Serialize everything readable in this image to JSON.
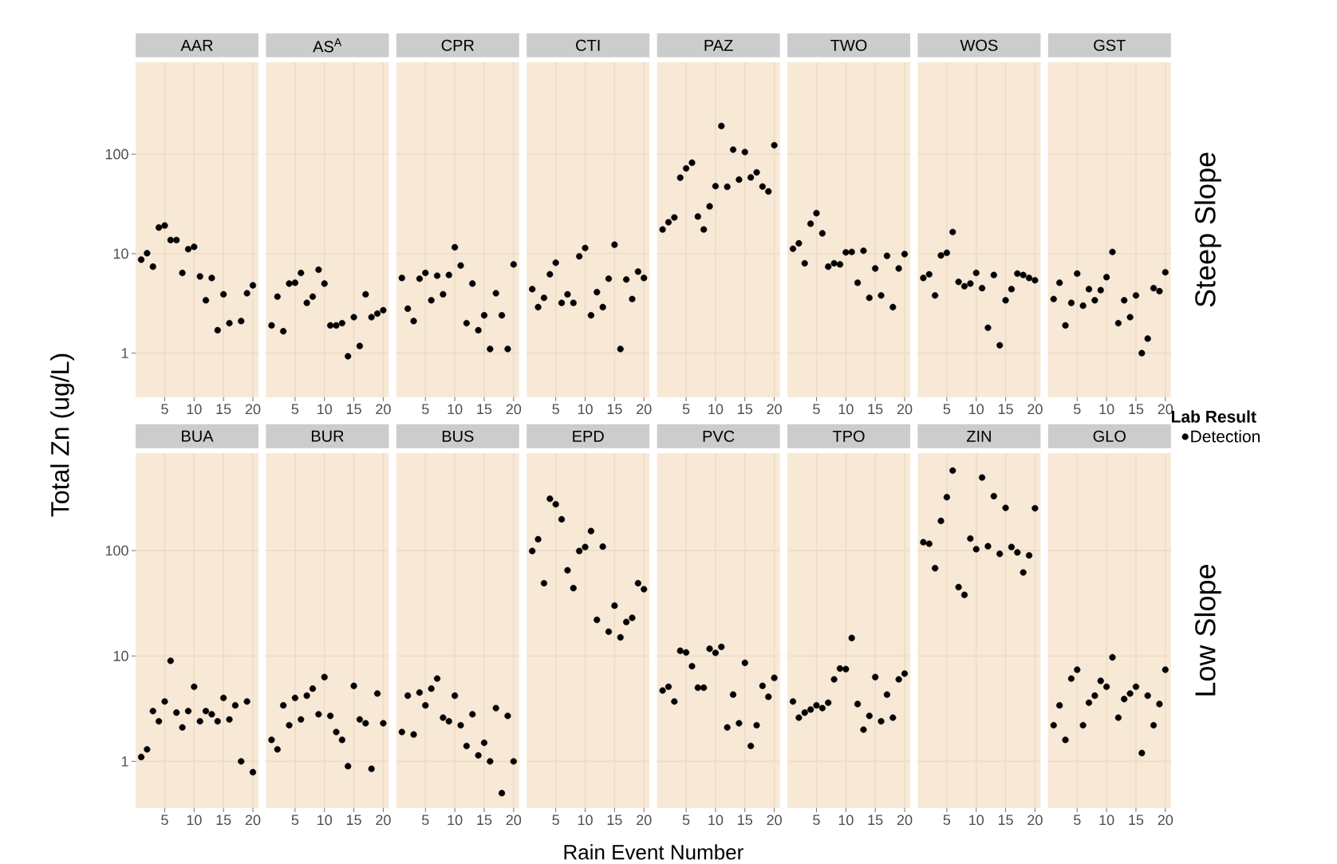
{
  "chart_data": [
    {
      "type": "scatter",
      "title": "AAR",
      "ylabel": "Total Zn (ug/L)",
      "x": [
        1,
        2,
        3,
        4,
        5,
        6,
        7,
        8,
        9,
        10,
        11,
        12,
        13,
        14,
        15,
        16,
        18,
        19,
        20
      ],
      "values": [
        8.7,
        10.1,
        7.4,
        18.3,
        19.2,
        13.7,
        13.7,
        6.4,
        11.1,
        11.7,
        5.9,
        3.4,
        5.7,
        1.7,
        3.9,
        2.0,
        2.1,
        4.0,
        4.8
      ],
      "color": "#000000",
      "xlim": [
        0.05,
        20.95
      ],
      "xticks": [
        5,
        10,
        15,
        20
      ],
      "ylim": [
        0.36,
        840
      ],
      "yticks": [
        1,
        10,
        100
      ],
      "log": "y",
      "grid": true,
      "marker": "circle"
    },
    {
      "type": "scatter",
      "title": "AS$^{A}$",
      "x": [
        1,
        2,
        3,
        4,
        5,
        6,
        7,
        8,
        9,
        10,
        11,
        12,
        13,
        14,
        15,
        16,
        17,
        18,
        19,
        20
      ],
      "values": [
        1.9,
        3.7,
        1.66,
        5.0,
        5.1,
        6.4,
        3.2,
        3.7,
        6.9,
        5.0,
        1.9,
        1.9,
        2.0,
        0.93,
        2.3,
        1.18,
        3.9,
        2.3,
        2.5,
        2.7
      ],
      "color": "#000000",
      "xlim": [
        0.05,
        20.95
      ],
      "xticks": [
        5,
        10,
        15,
        20
      ],
      "ylim": [
        0.36,
        840
      ],
      "yticks": [
        1,
        10,
        100
      ],
      "log": "y",
      "grid": true,
      "marker": "circle",
      "tick_labels": "x"
    },
    {
      "type": "scatter",
      "title": "CPR",
      "x": [
        1,
        2,
        3,
        4,
        5,
        6,
        7,
        8,
        9,
        10,
        11,
        12,
        13,
        14,
        15,
        16,
        17,
        18,
        19,
        20
      ],
      "values": [
        5.7,
        2.8,
        2.1,
        5.6,
        6.4,
        3.4,
        6.0,
        3.9,
        6.1,
        11.6,
        7.6,
        2.0,
        5.0,
        1.7,
        2.4,
        1.1,
        4.0,
        2.4,
        1.1,
        7.8
      ],
      "color": "#000000",
      "xlim": [
        0.05,
        20.95
      ],
      "xticks": [
        5,
        10,
        15,
        20
      ],
      "ylim": [
        0.36,
        840
      ],
      "yticks": [
        1,
        10,
        100
      ],
      "log": "y",
      "grid": true,
      "marker": "circle",
      "tick_labels": "x"
    },
    {
      "type": "scatter",
      "title": "CTI",
      "x": [
        1,
        2,
        3,
        4,
        5,
        6,
        7,
        8,
        9,
        10,
        11,
        12,
        13,
        14,
        15,
        16,
        17,
        18,
        19,
        20
      ],
      "values": [
        4.4,
        2.9,
        3.6,
        6.2,
        8.1,
        3.2,
        3.9,
        3.2,
        9.4,
        11.4,
        2.4,
        4.1,
        2.9,
        5.6,
        12.3,
        1.1,
        5.5,
        3.5,
        6.6,
        5.7
      ],
      "color": "#000000",
      "xlim": [
        0.05,
        20.95
      ],
      "xticks": [
        5,
        10,
        15,
        20
      ],
      "ylim": [
        0.36,
        840
      ],
      "yticks": [
        1,
        10,
        100
      ],
      "log": "y",
      "grid": true,
      "marker": "circle",
      "tick_labels": "x"
    },
    {
      "type": "scatter",
      "title": "PAZ",
      "x": [
        1,
        2,
        3,
        4,
        5,
        6,
        7,
        8,
        9,
        10,
        11,
        12,
        13,
        14,
        15,
        16,
        17,
        18,
        19,
        20
      ],
      "values": [
        17.5,
        20.7,
        23.1,
        58,
        72,
        82,
        23.6,
        17.5,
        29.9,
        47.7,
        192,
        47.0,
        111,
        55.5,
        105,
        58.4,
        65.6,
        47.3,
        42.2,
        123
      ],
      "color": "#000000",
      "xlim": [
        0.05,
        20.95
      ],
      "xticks": [
        5,
        10,
        15,
        20
      ],
      "ylim": [
        0.36,
        840
      ],
      "yticks": [
        1,
        10,
        100
      ],
      "log": "y",
      "grid": true,
      "marker": "circle",
      "tick_labels": "x"
    },
    {
      "type": "scatter",
      "title": "TWO",
      "x": [
        1,
        2,
        3,
        4,
        5,
        6,
        7,
        8,
        9,
        10,
        11,
        12,
        13,
        14,
        15,
        16,
        17,
        18,
        19,
        20
      ],
      "values": [
        11.2,
        12.7,
        8.0,
        20.0,
        25.5,
        16.0,
        7.4,
        8.0,
        7.8,
        10.3,
        10.4,
        5.1,
        10.7,
        3.6,
        7.1,
        3.8,
        9.5,
        2.9,
        7.1,
        9.9
      ],
      "color": "#000000",
      "xlim": [
        0.05,
        20.95
      ],
      "xticks": [
        5,
        10,
        15,
        20
      ],
      "ylim": [
        0.36,
        840
      ],
      "yticks": [
        1,
        10,
        100
      ],
      "log": "y",
      "grid": true,
      "marker": "circle",
      "tick_labels": "x"
    },
    {
      "type": "scatter",
      "title": "WOS",
      "x": [
        1,
        2,
        3,
        4,
        5,
        6,
        7,
        8,
        9,
        10,
        11,
        12,
        13,
        14,
        15,
        16,
        17,
        18,
        19,
        20
      ],
      "values": [
        5.7,
        6.2,
        3.8,
        9.6,
        10.2,
        16.5,
        5.2,
        4.7,
        5.0,
        6.4,
        4.5,
        1.8,
        6.1,
        1.2,
        3.4,
        4.4,
        6.3,
        6.1,
        5.7,
        5.4
      ],
      "color": "#000000",
      "xlim": [
        0.05,
        20.95
      ],
      "xticks": [
        5,
        10,
        15,
        20
      ],
      "ylim": [
        0.36,
        840
      ],
      "yticks": [
        1,
        10,
        100
      ],
      "log": "y",
      "grid": true,
      "marker": "circle",
      "tick_labels": "x"
    },
    {
      "type": "scatter",
      "title": "GST",
      "annotations": [
        "Steep Slope"
      ],
      "x": [
        1,
        2,
        3,
        4,
        5,
        6,
        7,
        8,
        9,
        10,
        11,
        12,
        13,
        14,
        15,
        16,
        17,
        18,
        19,
        20
      ],
      "values": [
        3.5,
        5.1,
        1.9,
        3.2,
        6.3,
        3.0,
        4.4,
        3.4,
        4.3,
        5.8,
        10.4,
        2.0,
        3.4,
        2.3,
        3.8,
        1.0,
        1.4,
        4.5,
        4.2,
        6.5
      ],
      "color": "#000000",
      "xlim": [
        0.05,
        20.95
      ],
      "xticks": [
        5,
        10,
        15,
        20
      ],
      "ylim": [
        0.36,
        840
      ],
      "yticks": [
        1,
        10,
        100
      ],
      "log": "y",
      "grid": true,
      "marker": "circle",
      "tick_labels": "x"
    },
    {
      "type": "scatter",
      "title": "BUA",
      "x": [
        1,
        2,
        3,
        4,
        5,
        6,
        7,
        8,
        9,
        10,
        11,
        12,
        13,
        14,
        15,
        16,
        17,
        18,
        19,
        20
      ],
      "values": [
        1.1,
        1.3,
        3.0,
        2.4,
        3.7,
        9.0,
        2.9,
        2.1,
        3.0,
        5.1,
        2.4,
        3.0,
        2.8,
        2.4,
        4.0,
        2.5,
        3.4,
        1.0,
        3.7,
        0.79
      ],
      "color": "#000000",
      "xlim": [
        0.05,
        20.95
      ],
      "xticks": [
        5,
        10,
        15,
        20
      ],
      "ylim": [
        0.36,
        840
      ],
      "yticks": [
        1,
        10,
        100
      ],
      "log": "y",
      "grid": true,
      "marker": "circle"
    },
    {
      "type": "scatter",
      "title": "BUR",
      "x": [
        1,
        2,
        3,
        4,
        5,
        6,
        7,
        8,
        9,
        10,
        11,
        12,
        13,
        14,
        15,
        16,
        17,
        18,
        19,
        20
      ],
      "values": [
        1.6,
        1.3,
        3.4,
        2.2,
        4.0,
        2.5,
        4.2,
        4.9,
        2.8,
        6.3,
        2.7,
        1.9,
        1.6,
        0.9,
        5.2,
        2.5,
        2.3,
        0.85,
        4.4,
        2.3
      ],
      "color": "#000000",
      "xlim": [
        0.05,
        20.95
      ],
      "xticks": [
        5,
        10,
        15,
        20
      ],
      "ylim": [
        0.36,
        840
      ],
      "yticks": [
        1,
        10,
        100
      ],
      "log": "y",
      "grid": true,
      "marker": "circle",
      "tick_labels": "x"
    },
    {
      "type": "scatter",
      "title": "BUS",
      "x": [
        1,
        2,
        3,
        4,
        5,
        6,
        7,
        8,
        9,
        10,
        11,
        12,
        13,
        14,
        15,
        16,
        17,
        18,
        19,
        20
      ],
      "values": [
        1.9,
        4.2,
        1.8,
        4.5,
        3.4,
        4.9,
        6.1,
        2.6,
        2.4,
        4.2,
        2.2,
        1.4,
        2.8,
        1.14,
        1.5,
        1.0,
        3.2,
        0.5,
        2.7,
        1.0
      ],
      "color": "#000000",
      "xlim": [
        0.05,
        20.95
      ],
      "xticks": [
        5,
        10,
        15,
        20
      ],
      "ylim": [
        0.36,
        840
      ],
      "yticks": [
        1,
        10,
        100
      ],
      "log": "y",
      "grid": true,
      "marker": "circle",
      "tick_labels": "x"
    },
    {
      "type": "scatter",
      "title": "EPD",
      "x": [
        1,
        2,
        3,
        4,
        5,
        6,
        7,
        8,
        9,
        10,
        11,
        12,
        13,
        14,
        15,
        16,
        17,
        18,
        19,
        20
      ],
      "values": [
        99,
        128,
        49,
        310,
        275,
        198,
        65,
        44,
        99,
        108,
        153,
        22,
        109,
        17,
        30,
        15,
        21,
        23,
        49,
        43
      ],
      "color": "#000000",
      "xlim": [
        0.05,
        20.95
      ],
      "xticks": [
        5,
        10,
        15,
        20
      ],
      "ylim": [
        0.36,
        840
      ],
      "yticks": [
        1,
        10,
        100
      ],
      "log": "y",
      "grid": true,
      "marker": "circle",
      "tick_labels": "x"
    },
    {
      "type": "scatter",
      "title": "PVC",
      "xlabel": "Rain Event Number",
      "x": [
        1,
        2,
        3,
        4,
        5,
        6,
        7,
        8,
        9,
        10,
        11,
        12,
        13,
        14,
        15,
        16,
        17,
        18,
        19,
        20
      ],
      "values": [
        4.7,
        5.1,
        3.7,
        11.2,
        10.8,
        8.0,
        5.0,
        5.0,
        11.7,
        10.7,
        12.2,
        2.1,
        4.3,
        2.3,
        8.6,
        1.4,
        2.2,
        5.2,
        4.1,
        6.2
      ],
      "color": "#000000",
      "xlim": [
        0.05,
        20.95
      ],
      "xticks": [
        5,
        10,
        15,
        20
      ],
      "ylim": [
        0.36,
        840
      ],
      "yticks": [
        1,
        10,
        100
      ],
      "log": "y",
      "grid": true,
      "marker": "circle",
      "tick_labels": "x"
    },
    {
      "type": "scatter",
      "title": "TPO",
      "x": [
        1,
        2,
        3,
        4,
        5,
        6,
        7,
        8,
        9,
        10,
        11,
        12,
        13,
        14,
        15,
        16,
        17,
        18,
        19,
        20
      ],
      "values": [
        3.7,
        2.6,
        2.9,
        3.1,
        3.4,
        3.2,
        3.6,
        6.0,
        7.6,
        7.5,
        14.8,
        3.5,
        2.0,
        2.7,
        6.3,
        2.4,
        4.3,
        2.6,
        6.0,
        6.8
      ],
      "color": "#000000",
      "xlim": [
        0.05,
        20.95
      ],
      "xticks": [
        5,
        10,
        15,
        20
      ],
      "ylim": [
        0.36,
        840
      ],
      "yticks": [
        1,
        10,
        100
      ],
      "log": "y",
      "grid": true,
      "marker": "circle",
      "tick_labels": "x"
    },
    {
      "type": "scatter",
      "title": "ZIN",
      "x": [
        1,
        2,
        3,
        4,
        5,
        6,
        7,
        8,
        9,
        10,
        11,
        12,
        13,
        14,
        15,
        16,
        17,
        18,
        19,
        20
      ],
      "values": [
        120,
        116,
        68,
        191,
        321,
        574,
        45,
        38,
        130,
        103,
        493,
        110,
        328,
        93,
        254,
        108,
        96,
        62,
        90,
        252
      ],
      "color": "#000000",
      "xlim": [
        0.05,
        20.95
      ],
      "xticks": [
        5,
        10,
        15,
        20
      ],
      "ylim": [
        0.36,
        840
      ],
      "yticks": [
        1,
        10,
        100
      ],
      "log": "y",
      "grid": true,
      "marker": "circle",
      "tick_labels": "x"
    },
    {
      "type": "scatter",
      "title": "GLO",
      "annotations": [
        "Low Slope"
      ],
      "legend": "right",
      "legend_title": "Lab Result",
      "x": [
        1,
        2,
        3,
        4,
        5,
        6,
        7,
        8,
        9,
        10,
        11,
        12,
        13,
        14,
        15,
        16,
        17,
        18,
        19,
        20
      ],
      "series": [
        {
          "name": "Detection",
          "color": "#000000",
          "values": [
            2.2,
            3.4,
            1.6,
            6.1,
            7.4,
            2.2,
            3.6,
            4.2,
            5.8,
            5.1,
            9.7,
            2.6,
            3.9,
            4.4,
            5.1,
            1.2,
            4.2,
            2.2,
            3.5,
            7.4
          ]
        }
      ],
      "xlim": [
        0.05,
        20.95
      ],
      "xticks": [
        5,
        10,
        15,
        20
      ],
      "ylim": [
        0.36,
        840
      ],
      "yticks": [
        1,
        10,
        100
      ],
      "log": "y",
      "grid": true,
      "marker": "circle",
      "tick_labels": "x"
    }
  ]
}
